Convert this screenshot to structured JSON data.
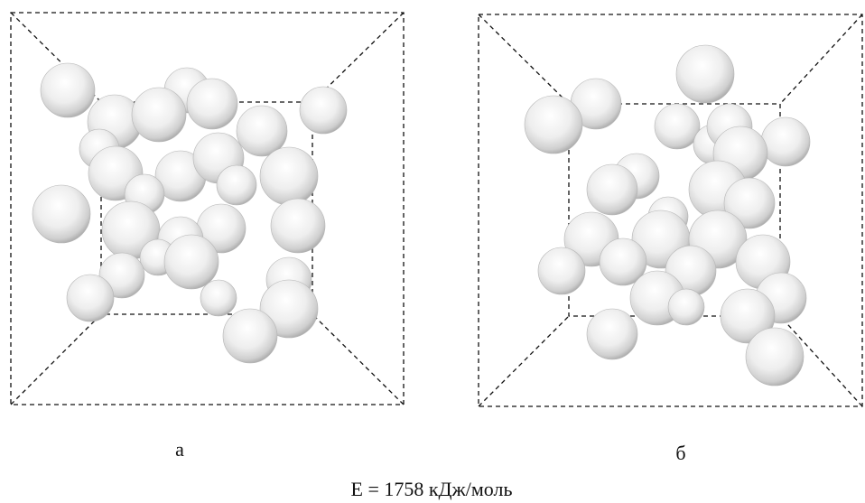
{
  "panels": [
    {
      "label": "а"
    },
    {
      "label": "б"
    }
  ],
  "caption": "E = 1758 кДж/моль"
}
